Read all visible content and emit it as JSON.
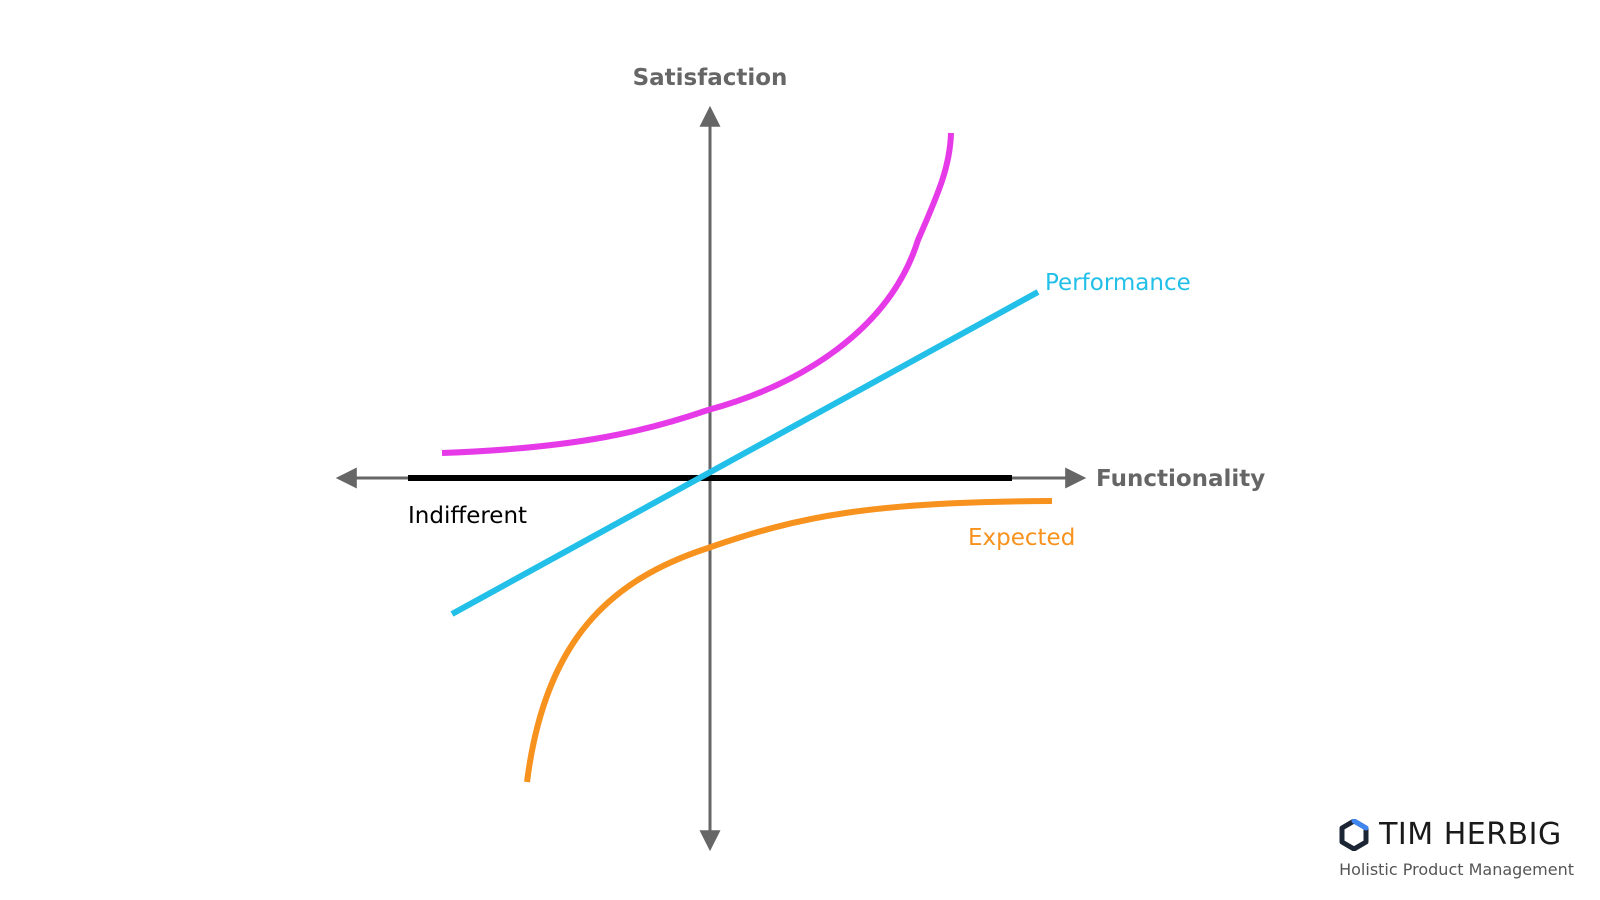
{
  "axes": {
    "y_title": "Satisfaction",
    "x_title": "Functionality"
  },
  "curves": {
    "attractive": {
      "color": "#e63ae8"
    },
    "performance": {
      "label": "Performance",
      "color": "#22c0e8"
    },
    "indifferent": {
      "label": "Indifferent",
      "color": "#000000"
    },
    "expected": {
      "label": "Expected",
      "color": "#f7921e"
    }
  },
  "axis_color": "#666666",
  "brand": {
    "name": "TIM HERBIG",
    "tagline": "Holistic Product Management",
    "icon": "hexagon-logo-icon",
    "icon_color": "#1c2533",
    "icon_accent": "#3f86f0"
  }
}
